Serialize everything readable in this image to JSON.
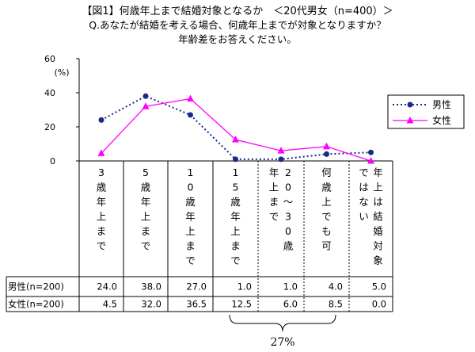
{
  "title": {
    "line1": "【図1】何歳年上まで結婚対象となるか　＜20代男女（n=400）＞",
    "line2": "Q.あなたが結婚を考える場合、何歳年上までが対象となりますか？",
    "line3": "年齢差をお答えください。"
  },
  "chart_data": {
    "type": "line",
    "categories": [
      "3歳年上まで",
      "5歳年上まで",
      "10歳年上まで",
      "15歳年上まで",
      "20～30歳年上まで",
      "何歳上でも可",
      "年上は結婚対象ではない"
    ],
    "category_columns": [
      [
        "3歳年上まで"
      ],
      [
        "5歳年上まで"
      ],
      [
        "10歳年上まで"
      ],
      [
        "15歳年上まで"
      ],
      [
        "20～30歳",
        "年上まで"
      ],
      [
        "何歳上でも可"
      ],
      [
        "年上は結婚対象",
        "ではない"
      ]
    ],
    "series": [
      {
        "name": "男性",
        "color": "#1a2a8c",
        "marker": "circle",
        "line_style": "dotted",
        "values": [
          24.0,
          38.0,
          27.0,
          1.0,
          1.0,
          4.0,
          5.0
        ]
      },
      {
        "name": "女性",
        "color": "#ff00ff",
        "marker": "triangle",
        "line_style": "solid",
        "values": [
          4.5,
          32.0,
          36.5,
          12.5,
          6.0,
          8.5,
          0.0
        ]
      }
    ],
    "ylim": [
      0,
      60
    ],
    "yticks": [
      "0",
      "20",
      "40",
      "60"
    ],
    "yunit": "(%)",
    "legend_placement": "right",
    "table_row_labels": [
      "男性(n=200)",
      "女性(n=200)"
    ],
    "table_values": [
      [
        "24.0",
        "38.0",
        "27.0",
        "1.0",
        "1.0",
        "4.0",
        "5.0"
      ],
      [
        "4.5",
        "32.0",
        "36.5",
        "12.5",
        "6.0",
        "8.5",
        "0.0"
      ]
    ],
    "annotation": "27%"
  }
}
